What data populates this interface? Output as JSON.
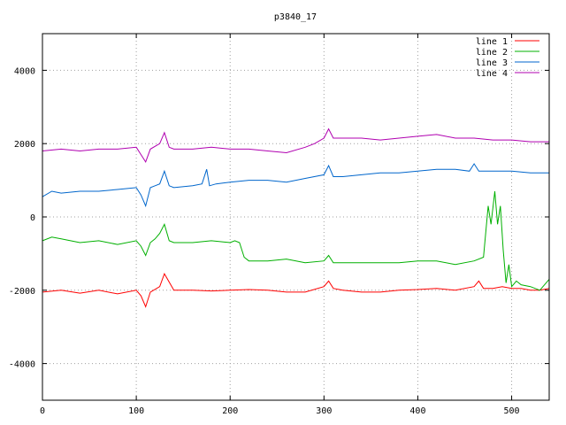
{
  "chart_data": {
    "type": "line",
    "title": "p3840_17",
    "xlabel": "",
    "ylabel": "",
    "xlim": [
      0,
      540
    ],
    "ylim": [
      -5000,
      5000
    ],
    "xticks": [
      0,
      100,
      200,
      300,
      400,
      500
    ],
    "yticks": [
      -4000,
      -2000,
      0,
      2000,
      4000
    ],
    "grid": true,
    "legend_position": "top-right",
    "series": [
      {
        "name": "line 1",
        "color": "#ff0000",
        "x": [
          0,
          20,
          40,
          60,
          80,
          100,
          105,
          110,
          115,
          125,
          130,
          140,
          160,
          180,
          200,
          220,
          240,
          260,
          280,
          300,
          305,
          310,
          320,
          340,
          360,
          380,
          400,
          420,
          440,
          460,
          465,
          470,
          480,
          490,
          500,
          510,
          520,
          530,
          540
        ],
        "y": [
          -2050,
          -2000,
          -2080,
          -2000,
          -2100,
          -2000,
          -2150,
          -2450,
          -2050,
          -1900,
          -1550,
          -2000,
          -2000,
          -2020,
          -2000,
          -1980,
          -2000,
          -2050,
          -2050,
          -1900,
          -1750,
          -1950,
          -2000,
          -2050,
          -2050,
          -2000,
          -1980,
          -1950,
          -2000,
          -1900,
          -1750,
          -1950,
          -1950,
          -1900,
          -1950,
          -1950,
          -2000,
          -2000,
          -1950
        ]
      },
      {
        "name": "line 2",
        "color": "#00b000",
        "x": [
          0,
          10,
          20,
          30,
          40,
          60,
          80,
          100,
          105,
          110,
          115,
          120,
          125,
          130,
          135,
          140,
          160,
          180,
          200,
          205,
          210,
          215,
          220,
          240,
          260,
          280,
          300,
          305,
          310,
          320,
          340,
          360,
          380,
          400,
          420,
          440,
          460,
          470,
          475,
          478,
          482,
          485,
          488,
          491,
          494,
          497,
          500,
          505,
          510,
          520,
          530,
          540
        ],
        "y": [
          -650,
          -550,
          -600,
          -650,
          -700,
          -650,
          -750,
          -650,
          -800,
          -1050,
          -700,
          -600,
          -450,
          -200,
          -650,
          -700,
          -700,
          -650,
          -700,
          -650,
          -700,
          -1100,
          -1200,
          -1200,
          -1150,
          -1250,
          -1200,
          -1050,
          -1250,
          -1250,
          -1250,
          -1250,
          -1250,
          -1200,
          -1200,
          -1300,
          -1200,
          -1100,
          300,
          -200,
          700,
          -200,
          300,
          -900,
          -1800,
          -1300,
          -1900,
          -1750,
          -1850,
          -1900,
          -2000,
          -1700
        ]
      },
      {
        "name": "line 3",
        "color": "#0066cc",
        "x": [
          0,
          10,
          20,
          40,
          60,
          80,
          100,
          105,
          110,
          115,
          120,
          125,
          130,
          135,
          140,
          160,
          170,
          175,
          178,
          185,
          200,
          220,
          240,
          260,
          280,
          300,
          305,
          310,
          320,
          340,
          360,
          380,
          400,
          420,
          440,
          455,
          460,
          465,
          480,
          500,
          520,
          540
        ],
        "y": [
          550,
          700,
          650,
          700,
          700,
          750,
          800,
          600,
          300,
          800,
          850,
          900,
          1250,
          850,
          800,
          850,
          900,
          1300,
          850,
          900,
          950,
          1000,
          1000,
          950,
          1050,
          1150,
          1400,
          1100,
          1100,
          1150,
          1200,
          1200,
          1250,
          1300,
          1300,
          1250,
          1450,
          1250,
          1250,
          1250,
          1200,
          1200
        ]
      },
      {
        "name": "line 4",
        "color": "#b000b0",
        "x": [
          0,
          20,
          40,
          60,
          80,
          100,
          105,
          110,
          115,
          125,
          130,
          135,
          140,
          160,
          180,
          200,
          220,
          240,
          260,
          280,
          290,
          300,
          305,
          310,
          320,
          340,
          360,
          380,
          400,
          420,
          440,
          460,
          480,
          500,
          520,
          540
        ],
        "y": [
          1800,
          1850,
          1800,
          1850,
          1850,
          1900,
          1700,
          1500,
          1850,
          2000,
          2300,
          1900,
          1850,
          1850,
          1900,
          1850,
          1850,
          1800,
          1750,
          1900,
          2000,
          2150,
          2400,
          2150,
          2150,
          2150,
          2100,
          2150,
          2200,
          2250,
          2150,
          2150,
          2100,
          2100,
          2050,
          2050
        ]
      }
    ]
  }
}
